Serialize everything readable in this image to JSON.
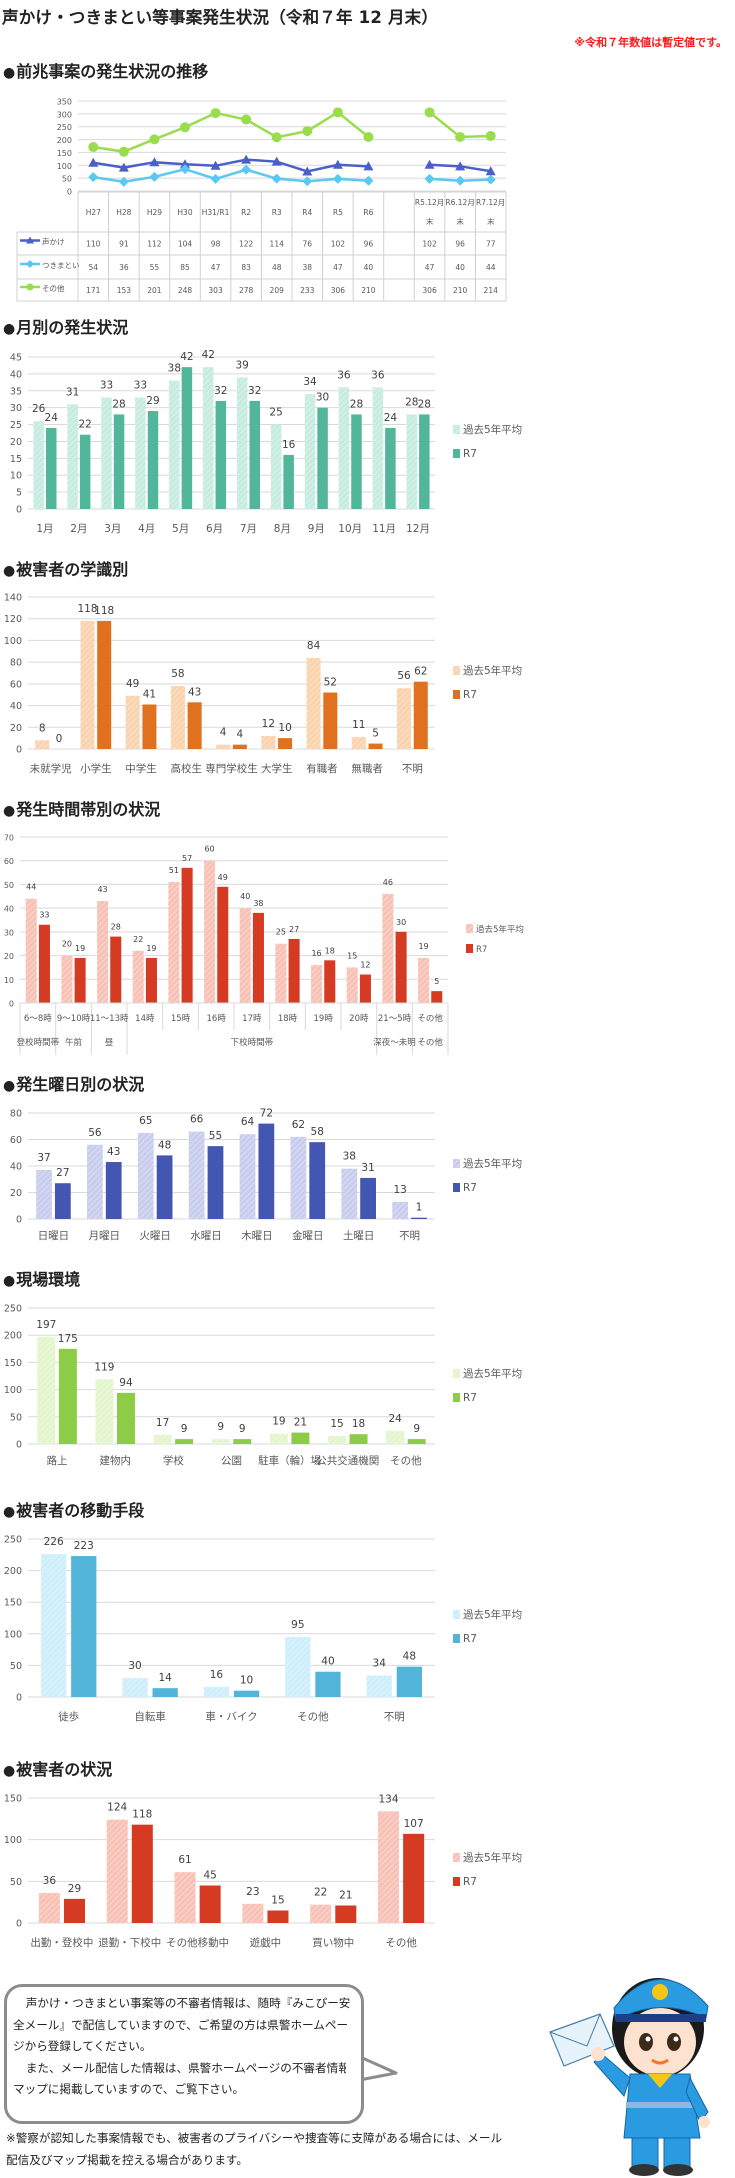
{
  "header": {
    "title": "声かけ・つきまとい等事案発生状況（令和７年 12 月末）",
    "note": "※令和７年数値は暫定値です。"
  },
  "sections": [
    "前兆事案の発生状況の推移",
    "月別の発生状況",
    "被害者の学識別",
    "発生時間帯別の状況",
    "発生曜日別の状況",
    "現場環境",
    "被害者の移動手段",
    "被害者の状況"
  ],
  "bullet": "●",
  "message": {
    "paragraphs": [
      "声かけ・つきまとい事案等の不審者情報は、随時『みこぴー安全メール』で配信していますので、ご希望の方は県警ホームページから登録してください。",
      "また、メール配信した情報は、県警ホームページの不審者情報マップに掲載していますので、ご覧下さい。"
    ],
    "footnote": "※警察が認知した事案情報でも、被害者のプライバシーや捜査等に支障がある場合には、メール配信及びマップ掲載を控える場合があります。",
    "mascot": "police-mascot-with-envelope",
    "mascot_badge": "⚜"
  },
  "chart_data": [
    {
      "type": "line",
      "title": "",
      "categories": [
        "H27",
        "H28",
        "H29",
        "H30",
        "H31/R1",
        "R2",
        "R3",
        "R4",
        "R5",
        "R6",
        "R5.12月末",
        "R6.12月末",
        "R7.12月末"
      ],
      "ylim": [
        0,
        350
      ],
      "ytick_step": 50,
      "grid": true,
      "legend": "table",
      "series": [
        {
          "name": "声かけ",
          "marker": "triangle",
          "color": "#4a5fc8",
          "values": [
            110,
            91,
            112,
            104,
            98,
            122,
            114,
            76,
            102,
            96,
            102,
            96,
            77
          ]
        },
        {
          "name": "つきまとい",
          "marker": "diamond",
          "color": "#5ac8f2",
          "values": [
            54,
            36,
            55,
            85,
            47,
            83,
            48,
            38,
            47,
            40,
            47,
            40,
            44
          ]
        },
        {
          "name": "その他",
          "marker": "circle",
          "color": "#99dd4d",
          "values": [
            171,
            153,
            201,
            248,
            303,
            278,
            209,
            233,
            306,
            210,
            306,
            210,
            214
          ]
        }
      ]
    },
    {
      "type": "bar",
      "categories": [
        "1月",
        "2月",
        "3月",
        "4月",
        "5月",
        "6月",
        "7月",
        "8月",
        "9月",
        "10月",
        "11月",
        "12月"
      ],
      "ylim": [
        0,
        45
      ],
      "ytick_step": 5,
      "grid": true,
      "legend": "right",
      "series": [
        {
          "name": "過去5年平均",
          "color": "#c6ecdf",
          "hatched": true,
          "values": [
            26,
            31,
            33,
            33,
            38,
            42,
            39,
            25,
            34,
            36,
            36,
            28
          ]
        },
        {
          "name": "R7",
          "color": "#52b69a",
          "values": [
            24,
            22,
            28,
            29,
            42,
            32,
            32,
            16,
            30,
            28,
            24,
            28
          ]
        }
      ]
    },
    {
      "type": "bar",
      "categories": [
        "未就学児",
        "小学生",
        "中学生",
        "高校生",
        "専門学校生",
        "大学生",
        "有職者",
        "無職者",
        "不明"
      ],
      "ylim": [
        0,
        140
      ],
      "ytick_step": 20,
      "grid": true,
      "legend": "right",
      "series": [
        {
          "name": "過去5年平均",
          "color": "#fbd2ae",
          "hatched": true,
          "values": [
            8,
            118,
            49,
            58,
            4,
            12,
            84,
            11,
            56
          ]
        },
        {
          "name": "R7",
          "color": "#e0711f",
          "values": [
            0,
            118,
            41,
            43,
            4,
            10,
            52,
            5,
            62
          ]
        }
      ]
    },
    {
      "type": "bar",
      "categories": [
        "6～8時",
        "9～10時",
        "11～13時",
        "14時",
        "15時",
        "16時",
        "17時",
        "18時",
        "19時",
        "20時",
        "21～5時",
        "その他"
      ],
      "groups": [
        {
          "label": "登校時間帯",
          "span": 1
        },
        {
          "label": "午前",
          "span": 1
        },
        {
          "label": "昼",
          "span": 1
        },
        {
          "label": "下校時間帯",
          "span": 7
        },
        {
          "label": "深夜～未明",
          "span": 1
        },
        {
          "label": "その他",
          "span": 1
        }
      ],
      "ylim": [
        0,
        70
      ],
      "ytick_step": 10,
      "grid": true,
      "legend": "right",
      "series": [
        {
          "name": "過去5年平均",
          "color": "#f8c1b6",
          "hatched": true,
          "values": [
            44,
            20,
            43,
            22,
            51,
            60,
            40,
            25,
            16,
            15,
            46,
            19
          ]
        },
        {
          "name": "R7",
          "color": "#d53a23",
          "values": [
            33,
            19,
            28,
            19,
            57,
            49,
            38,
            27,
            18,
            12,
            30,
            5
          ]
        }
      ]
    },
    {
      "type": "bar",
      "categories": [
        "日曜日",
        "月曜日",
        "火曜日",
        "水曜日",
        "木曜日",
        "金曜日",
        "土曜日",
        "不明"
      ],
      "ylim": [
        0,
        80
      ],
      "ytick_step": 20,
      "grid": true,
      "legend": "right",
      "series": [
        {
          "name": "過去5年平均",
          "color": "#c8cdee",
          "hatched": true,
          "values": [
            37,
            56,
            65,
            66,
            64,
            62,
            38,
            13
          ]
        },
        {
          "name": "R7",
          "color": "#4357b2",
          "values": [
            27,
            43,
            48,
            55,
            72,
            58,
            31,
            1
          ]
        }
      ]
    },
    {
      "type": "bar",
      "categories": [
        "路上",
        "建物内",
        "学校",
        "公園",
        "駐車（輪）場",
        "公共交通機関",
        "その他"
      ],
      "ylim": [
        0,
        250
      ],
      "ytick_step": 50,
      "grid": true,
      "legend": "right",
      "series": [
        {
          "name": "過去5年平均",
          "color": "#e3f5cc",
          "hatched": true,
          "values": [
            197,
            119,
            17,
            9,
            19,
            15,
            24
          ]
        },
        {
          "name": "R7",
          "color": "#8ccc46",
          "values": [
            175,
            94,
            9,
            9,
            21,
            18,
            9
          ]
        }
      ]
    },
    {
      "type": "bar",
      "categories": [
        "徒歩",
        "自転車",
        "車・バイク",
        "その他",
        "不明"
      ],
      "ylim": [
        0,
        250
      ],
      "ytick_step": 50,
      "grid": true,
      "legend": "right",
      "series": [
        {
          "name": "過去5年平均",
          "color": "#cdeefa",
          "hatched": true,
          "values": [
            226,
            30,
            16,
            95,
            34
          ]
        },
        {
          "name": "R7",
          "color": "#52b4d8",
          "values": [
            223,
            14,
            10,
            40,
            48
          ]
        }
      ]
    },
    {
      "type": "bar",
      "categories": [
        "出勤・登校中",
        "退勤・下校中",
        "その他移動中",
        "遊戯中",
        "買い物中",
        "その他"
      ],
      "ylim": [
        0,
        150
      ],
      "ytick_step": 50,
      "grid": true,
      "legend": "right",
      "series": [
        {
          "name": "過去5年平均",
          "color": "#f8c1b6",
          "hatched": true,
          "values": [
            36,
            124,
            61,
            23,
            22,
            134
          ]
        },
        {
          "name": "R7",
          "color": "#d53a23",
          "values": [
            29,
            118,
            45,
            15,
            21,
            107
          ]
        }
      ]
    }
  ]
}
